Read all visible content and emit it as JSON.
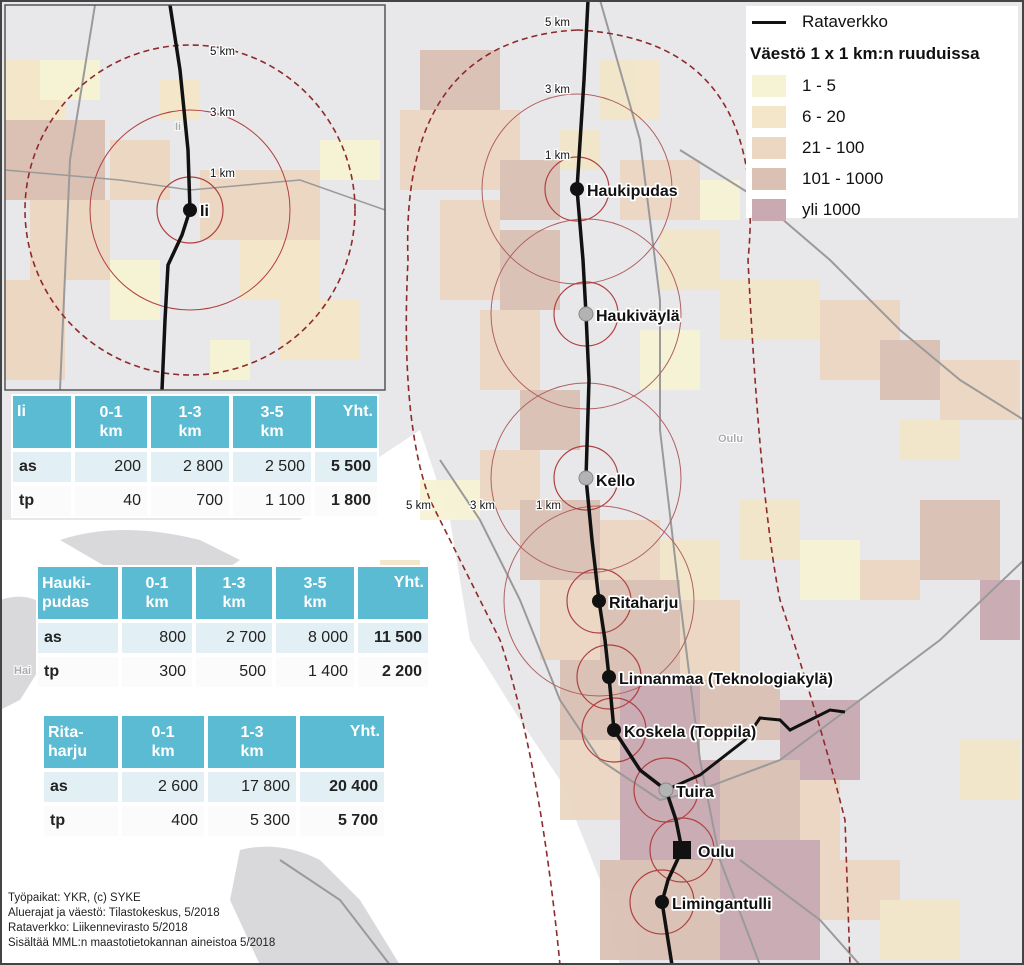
{
  "legend": {
    "rail_label": "Rataverkko",
    "title": "Väestö 1 x 1 km:n ruuduissa",
    "classes": [
      {
        "label": "1 - 5",
        "color": "#f6f3d4"
      },
      {
        "label": "6 - 20",
        "color": "#f3e6c9"
      },
      {
        "label": "21 - 100",
        "color": "#ecd7c2"
      },
      {
        "label": "101 - 1000",
        "color": "#dbc1b4"
      },
      {
        "label": "yli 1000",
        "color": "#c9a9b2"
      }
    ]
  },
  "map": {
    "stations": {
      "ii": "Ii",
      "haukipudas": "Haukipudas",
      "haukivayla": "Haukiväylä",
      "kello": "Kello",
      "ritaharju": "Ritaharju",
      "linnanmaa": "Linnanmaa (Teknologiakylä)",
      "koskela": "Koskela  (Toppila)",
      "tuira": "Tuira",
      "oulu": "Oulu",
      "limingantulli": "Limingantulli"
    },
    "distance_labels": {
      "km5": "5 km",
      "km3": "3 km",
      "km1": "1 km"
    },
    "place_labels": {
      "oulu_muni": "Oulu",
      "ii_muni": "Ii",
      "hailuoto": "Hai"
    }
  },
  "tables": {
    "ii": {
      "header": [
        "Ii",
        "0-1 km",
        "1-3 km",
        "3-5 km",
        "Yht."
      ],
      "rows": [
        [
          "as",
          "200",
          "2 800",
          "2 500",
          "5 500"
        ],
        [
          "tp",
          "40",
          "700",
          "1 100",
          "1 800"
        ]
      ]
    },
    "haukipudas": {
      "header": [
        "Hauki-pudas",
        "0-1 km",
        "1-3 km",
        "3-5 km",
        "Yht."
      ],
      "rows": [
        [
          "as",
          "800",
          "2 700",
          "8 000",
          "11 500"
        ],
        [
          "tp",
          "300",
          "500",
          "1 400",
          "2 200"
        ]
      ]
    },
    "ritaharju": {
      "header": [
        "Rita-harju",
        "0-1 km",
        "1-3 km",
        "Yht."
      ],
      "rows": [
        [
          "as",
          "2 600",
          "17 800",
          "20 400"
        ],
        [
          "tp",
          "400",
          "5 300",
          "5 700"
        ]
      ]
    }
  },
  "attribution": [
    "Työpaikat: YKR, (c) SYKE",
    "Aluerajat ja väestö: Tilastokeskus, 5/2018",
    "Rataverkko: Liikennevirasto 5/2018",
    "Sisältää MML:n maastotietokannan aineistoa 5/2018"
  ]
}
